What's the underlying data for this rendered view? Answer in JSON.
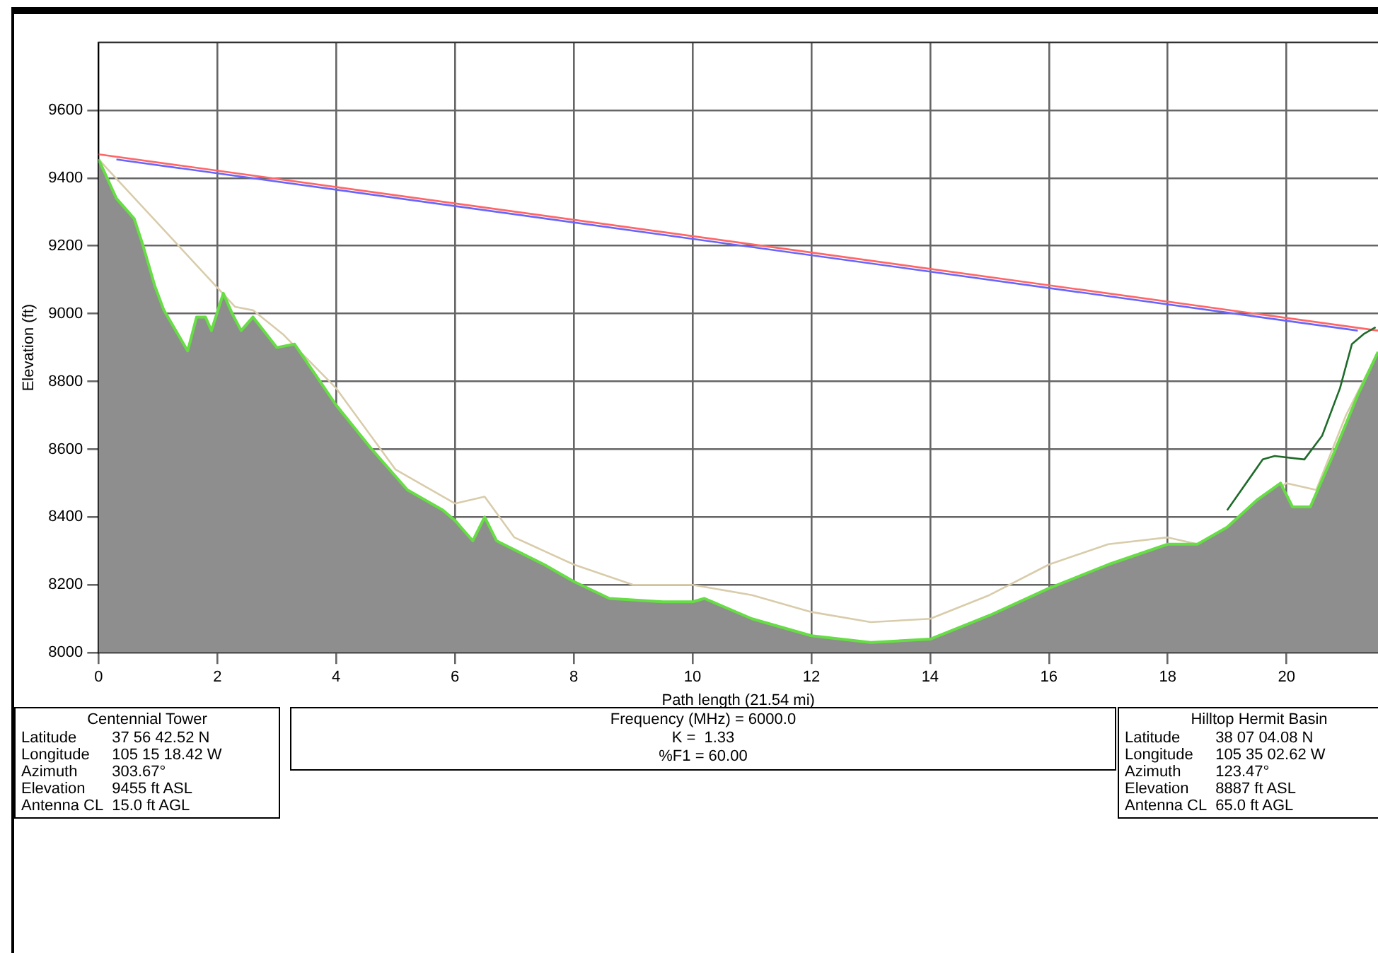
{
  "chart_data": {
    "type": "line",
    "xlabel": "Path length (21.54 mi)",
    "ylabel": "Elevation (ft)",
    "xlim": [
      0,
      21.54
    ],
    "xticks": [
      0,
      2,
      4,
      6,
      8,
      10,
      12,
      14,
      16,
      18,
      20
    ],
    "ylim": [
      8000,
      9800
    ],
    "yticks": [
      8000,
      8200,
      8400,
      8600,
      8800,
      9000,
      9200,
      9400,
      9600
    ],
    "grid": true,
    "legend": false,
    "marker": "none",
    "line_style": "solid",
    "series": [
      {
        "type": "area",
        "color": "#66dd44",
        "x": [
          0,
          0.3,
          0.6,
          0.75,
          0.95,
          1.1,
          1.5,
          1.65,
          1.8,
          1.9,
          2.1,
          2.25,
          2.4,
          2.6,
          3.0,
          3.3,
          4.0,
          4.6,
          5.2,
          5.8,
          6.0,
          6.3,
          6.5,
          6.7,
          7.5,
          8.0,
          8.6,
          9.5,
          10,
          10.2,
          11,
          12,
          13,
          14,
          15,
          16,
          17,
          18,
          18.5,
          19,
          19.5,
          19.9,
          20.1,
          20.4,
          20.8,
          21.2,
          21.54
        ],
        "values": [
          9455,
          9340,
          9280,
          9200,
          9080,
          9010,
          8890,
          8990,
          8990,
          8950,
          9060,
          9000,
          8950,
          8990,
          8900,
          8910,
          8730,
          8600,
          8480,
          8420,
          8390,
          8330,
          8400,
          8330,
          8260,
          8210,
          8160,
          8150,
          8150,
          8160,
          8100,
          8050,
          8030,
          8040,
          8110,
          8190,
          8260,
          8320,
          8320,
          8370,
          8450,
          8500,
          8430,
          8430,
          8590,
          8760,
          8887
        ]
      },
      {
        "color": "#d8ccaa",
        "x": [
          0,
          2.3,
          2.6,
          3.1,
          4,
          5,
          6,
          6.5,
          7,
          8,
          9,
          10,
          11,
          12,
          13,
          14,
          15,
          16,
          17,
          18,
          18.5,
          19,
          19.5,
          20,
          20.5,
          21,
          21.54
        ],
        "values": [
          9455,
          9020,
          9010,
          8940,
          8780,
          8540,
          8440,
          8460,
          8340,
          8260,
          8200,
          8200,
          8170,
          8120,
          8090,
          8100,
          8170,
          8260,
          8320,
          8340,
          8320,
          8360,
          8440,
          8500,
          8480,
          8700,
          8887
        ]
      },
      {
        "color": "#1e6b2a",
        "x": [
          19,
          19.6,
          19.8,
          20.3,
          20.6,
          20.9,
          21.1,
          21.3,
          21.5
        ],
        "values": [
          8420,
          8570,
          8580,
          8570,
          8640,
          8780,
          8910,
          8940,
          8960
        ]
      },
      {
        "color": "#ff6666",
        "x": [
          0,
          21.54
        ],
        "values": [
          9470,
          8950
        ]
      },
      {
        "color": "#6666ff",
        "x": [
          0.3,
          21.2
        ],
        "values": [
          9455,
          8950
        ]
      }
    ],
    "annotations": [
      "Centennial Tower\nLatitude\t37 56 42.52 N\nLongitude\t105 15 18.42 W\nAzimuth\t303.67°\nElevation\t9455 ft ASL\nAntenna CL\t15.0 ft AGL",
      "Frequency (MHz) = 6000.0\nK =  1.33\n%F1 = 60.00",
      "Hilltop Hermit Basin\nLatitude\t38 07 04.08 N\nLongitude\t105 35 02.62 W\nAzimuth\t123.47°\nElevation\t8887 ft ASL\nAntenna CL\t65.0 ft AGL"
    ]
  }
}
